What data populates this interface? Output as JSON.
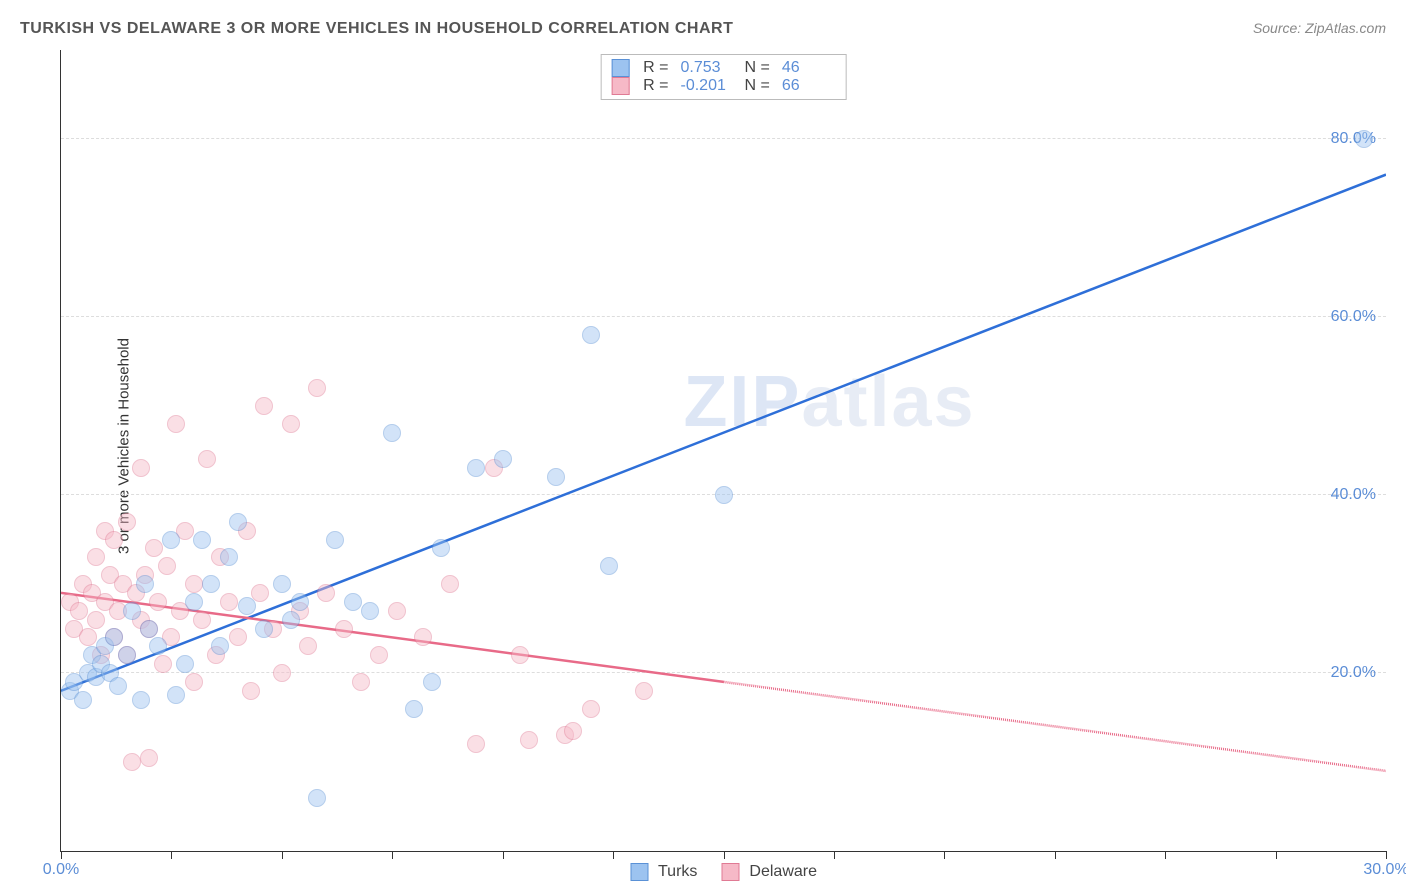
{
  "title": "TURKISH VS DELAWARE 3 OR MORE VEHICLES IN HOUSEHOLD CORRELATION CHART",
  "source": "Source: ZipAtlas.com",
  "watermark": "ZIPatlas",
  "y_axis_label": "3 or more Vehicles in Household",
  "chart": {
    "type": "scatter",
    "xlim": [
      0,
      30
    ],
    "ylim": [
      0,
      90
    ],
    "x_ticks": [
      0,
      2.5,
      5,
      7.5,
      10,
      12.5,
      15,
      17.5,
      20,
      22.5,
      25,
      27.5,
      30
    ],
    "x_tick_labels": {
      "0": "0.0%",
      "30": "30.0%"
    },
    "y_gridlines": [
      20,
      40,
      60,
      80
    ],
    "y_tick_labels": {
      "20": "20.0%",
      "40": "40.0%",
      "60": "60.0%",
      "80": "80.0%"
    },
    "background_color": "#ffffff",
    "grid_color": "#dddddd",
    "axis_color": "#333333",
    "label_color": "#5b8dd6",
    "point_radius": 9,
    "point_opacity": 0.45,
    "series": {
      "turks": {
        "label": "Turks",
        "fill": "#9cc3f0",
        "stroke": "#5a91d6",
        "line_color": "#2e6fd8",
        "R": "0.753",
        "N": "46",
        "trend": {
          "x1": 0,
          "y1": 18,
          "x2": 30,
          "y2": 76,
          "dash_after_x": null
        },
        "points": [
          [
            0.2,
            18
          ],
          [
            0.3,
            19
          ],
          [
            0.5,
            17
          ],
          [
            0.6,
            20
          ],
          [
            0.7,
            22
          ],
          [
            0.8,
            19.5
          ],
          [
            0.9,
            21
          ],
          [
            1.0,
            23
          ],
          [
            1.1,
            20
          ],
          [
            1.2,
            24
          ],
          [
            1.3,
            18.5
          ],
          [
            1.5,
            22
          ],
          [
            1.6,
            27
          ],
          [
            1.8,
            17
          ],
          [
            1.9,
            30
          ],
          [
            2.0,
            25
          ],
          [
            2.2,
            23
          ],
          [
            2.5,
            35
          ],
          [
            2.6,
            17.5
          ],
          [
            2.8,
            21
          ],
          [
            3.0,
            28
          ],
          [
            3.2,
            35
          ],
          [
            3.4,
            30
          ],
          [
            3.6,
            23
          ],
          [
            3.8,
            33
          ],
          [
            4.0,
            37
          ],
          [
            4.2,
            27.5
          ],
          [
            4.6,
            25
          ],
          [
            5.0,
            30
          ],
          [
            5.2,
            26
          ],
          [
            5.4,
            28
          ],
          [
            5.8,
            6
          ],
          [
            6.2,
            35
          ],
          [
            6.6,
            28
          ],
          [
            7.0,
            27
          ],
          [
            7.5,
            47
          ],
          [
            8.0,
            16
          ],
          [
            8.4,
            19
          ],
          [
            8.6,
            34
          ],
          [
            9.4,
            43
          ],
          [
            10.0,
            44
          ],
          [
            11.2,
            42
          ],
          [
            12.0,
            58
          ],
          [
            12.4,
            32
          ],
          [
            15.0,
            40
          ],
          [
            29.5,
            80
          ]
        ]
      },
      "delaware": {
        "label": "Delaware",
        "fill": "#f6b9c7",
        "stroke": "#e07a94",
        "line_color": "#e86a88",
        "R": "-0.201",
        "N": "66",
        "trend": {
          "x1": 0,
          "y1": 29,
          "x2": 30,
          "y2": 9,
          "dash_after_x": 15
        },
        "points": [
          [
            0.2,
            28
          ],
          [
            0.3,
            25
          ],
          [
            0.4,
            27
          ],
          [
            0.5,
            30
          ],
          [
            0.6,
            24
          ],
          [
            0.7,
            29
          ],
          [
            0.8,
            26
          ],
          [
            0.8,
            33
          ],
          [
            0.9,
            22
          ],
          [
            1.0,
            36
          ],
          [
            1.0,
            28
          ],
          [
            1.1,
            31
          ],
          [
            1.2,
            24
          ],
          [
            1.2,
            35
          ],
          [
            1.3,
            27
          ],
          [
            1.4,
            30
          ],
          [
            1.5,
            22
          ],
          [
            1.5,
            37
          ],
          [
            1.6,
            10
          ],
          [
            1.7,
            29
          ],
          [
            1.8,
            26
          ],
          [
            1.8,
            43
          ],
          [
            1.9,
            31
          ],
          [
            2.0,
            10.5
          ],
          [
            2.0,
            25
          ],
          [
            2.1,
            34
          ],
          [
            2.2,
            28
          ],
          [
            2.3,
            21
          ],
          [
            2.4,
            32
          ],
          [
            2.5,
            24
          ],
          [
            2.6,
            48
          ],
          [
            2.7,
            27
          ],
          [
            2.8,
            36
          ],
          [
            3.0,
            19
          ],
          [
            3.0,
            30
          ],
          [
            3.2,
            26
          ],
          [
            3.3,
            44
          ],
          [
            3.5,
            22
          ],
          [
            3.6,
            33
          ],
          [
            3.8,
            28
          ],
          [
            4.0,
            24
          ],
          [
            4.2,
            36
          ],
          [
            4.3,
            18
          ],
          [
            4.5,
            29
          ],
          [
            4.6,
            50
          ],
          [
            4.8,
            25
          ],
          [
            5.0,
            20
          ],
          [
            5.2,
            48
          ],
          [
            5.4,
            27
          ],
          [
            5.6,
            23
          ],
          [
            5.8,
            52
          ],
          [
            6.0,
            29
          ],
          [
            6.4,
            25
          ],
          [
            6.8,
            19
          ],
          [
            7.2,
            22
          ],
          [
            7.6,
            27
          ],
          [
            8.2,
            24
          ],
          [
            8.8,
            30
          ],
          [
            9.4,
            12
          ],
          [
            9.8,
            43
          ],
          [
            10.4,
            22
          ],
          [
            10.6,
            12.5
          ],
          [
            11.4,
            13
          ],
          [
            11.6,
            13.5
          ],
          [
            12.0,
            16
          ],
          [
            13.2,
            18
          ]
        ]
      }
    }
  },
  "legend_top": {
    "r_label": "R =",
    "n_label": "N ="
  }
}
